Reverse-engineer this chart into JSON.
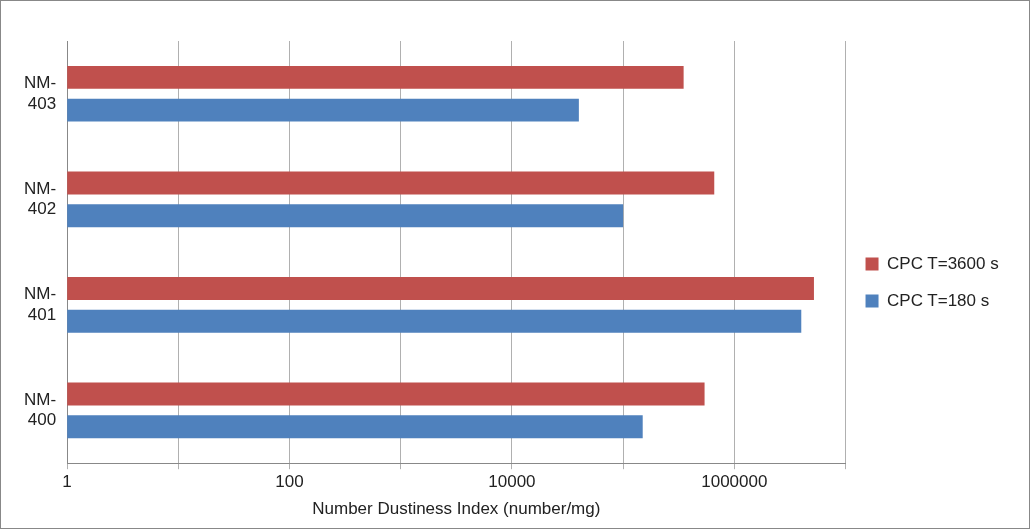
{
  "chart_data": {
    "type": "bar",
    "orientation": "horizontal",
    "log": "x",
    "xlabel": "Number Dustiness Index (number/mg)",
    "categories": [
      "NM-403",
      "NM-402",
      "NM-401",
      "NM-400"
    ],
    "series": [
      {
        "name": "CPC T=3600 s",
        "color": "#c0504d",
        "values": [
          350000,
          660000,
          5200000,
          540000
        ]
      },
      {
        "name": "CPC T=180 s",
        "color": "#4f81bd",
        "values": [
          40000,
          100000,
          4000000,
          150000
        ]
      }
    ],
    "xlim": [
      1,
      10000000
    ],
    "xticks": [
      1,
      {
        "value": 10,
        "label": null
      },
      100,
      {
        "value": 1000,
        "label": null
      },
      10000,
      {
        "value": 100000,
        "label": null
      },
      1000000,
      {
        "value": 10000000,
        "label": null
      }
    ],
    "grid": "x",
    "legend": "right"
  }
}
